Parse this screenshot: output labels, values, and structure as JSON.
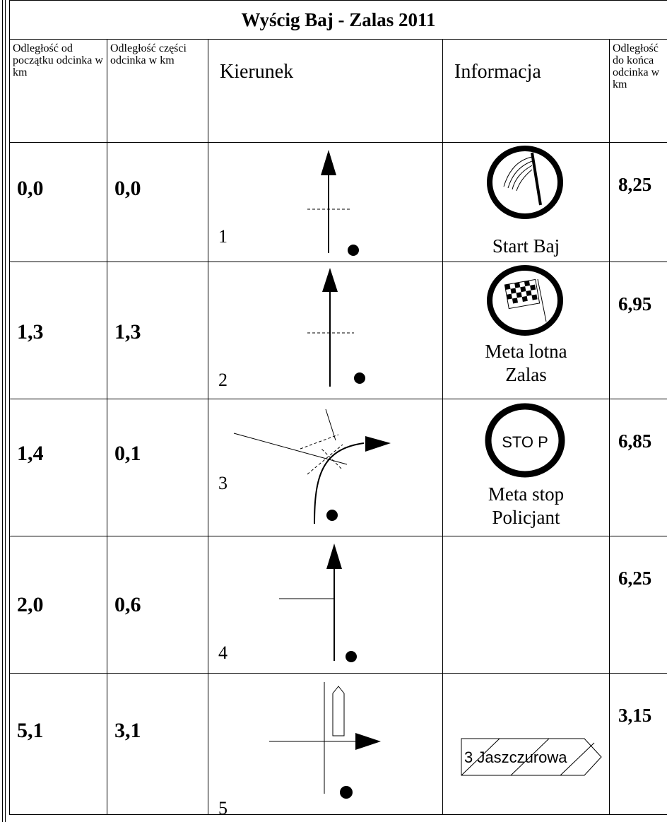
{
  "title": "Wyścig Baj - Zalas 2011",
  "headers": {
    "dist_from_start": "Odległość od początku odcinka w km",
    "dist_part": "Odległość części odcinka w km",
    "direction": "Kierunek",
    "info": "Informacja",
    "dist_to_end": "Odległość do końca odcinka w km"
  },
  "rows": [
    {
      "from_start": "0,0",
      "part": "0,0",
      "step": "1",
      "info": "Start Baj",
      "to_end": "8,25",
      "icon": "start-flag-icon"
    },
    {
      "from_start": "1,3",
      "part": "1,3",
      "step": "2",
      "info_lines": [
        "Meta lotna",
        "Zalas"
      ],
      "to_end": "6,95",
      "icon": "checkered-flag-icon"
    },
    {
      "from_start": "1,4",
      "part": "0,1",
      "step": "3",
      "info_lines": [
        "Meta stop",
        "Policjant"
      ],
      "stop_text": "STO P",
      "to_end": "6,85",
      "icon": "stop-sign-icon"
    },
    {
      "from_start": "2,0",
      "part": "0,6",
      "step": "4",
      "info": "",
      "to_end": "6,25"
    },
    {
      "from_start": "5,1",
      "part": "3,1",
      "step": "5",
      "sign_text": "3 Jaszczurowa",
      "to_end": "3,15",
      "icon": "direction-sign-icon"
    }
  ]
}
